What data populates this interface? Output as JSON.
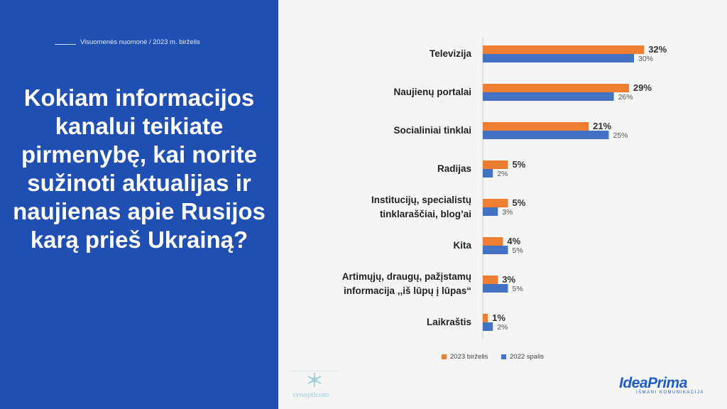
{
  "header": {
    "subtitle": "Visuomenės nuomonė / 2023 m. birželis"
  },
  "question": "Kokiam informacijos kanalui teikiate pirmenybę, kai norite sužinoti aktualijas ir naujienas apie Rusijos karą prieš Ukrainą?",
  "colors": {
    "series_2023": "#ed7d31",
    "series_2022": "#4472c4",
    "left_panel": "#1f4fb3"
  },
  "chart_data": {
    "type": "bar",
    "orientation": "horizontal",
    "categories": [
      [
        "Televizija"
      ],
      [
        "Naujienų portalai"
      ],
      [
        "Socialiniai tinklai"
      ],
      [
        "Radijas"
      ],
      [
        "Institucijų, specialistų",
        "tinklaraščiai, blog’ai"
      ],
      [
        "Kita"
      ],
      [
        "Artimųjų, draugų, pažįstamų",
        "informacija ,,iš lūpų į lūpas“"
      ],
      [
        "Laikraštis"
      ]
    ],
    "series": [
      {
        "name": "2023 birželis",
        "color": "#ed7d31",
        "values": [
          32,
          29,
          21,
          5,
          5,
          4,
          3,
          1
        ],
        "labels": [
          "32%",
          "29%",
          "21%",
          "5%",
          "5%",
          "4%",
          "3%",
          "1%"
        ]
      },
      {
        "name": "2022 spalis",
        "color": "#4472c4",
        "values": [
          30,
          26,
          25,
          2,
          3,
          5,
          5,
          2
        ],
        "labels": [
          "30%",
          "26%",
          "25%",
          "2%",
          "3%",
          "5%",
          "5%",
          "2%"
        ]
      }
    ],
    "xlim": [
      0,
      34
    ],
    "legend": "bottom"
  },
  "logos": {
    "left": "synopticom",
    "right_name": "IdeaPrima",
    "right_tagline": "IŠMANI KOMUNIKACIJA"
  }
}
